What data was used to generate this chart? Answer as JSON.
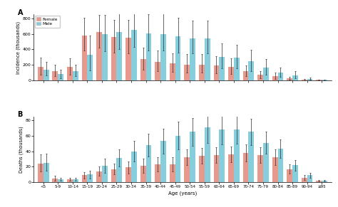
{
  "age_groups": [
    "<5",
    "5-9",
    "10-14",
    "15-19",
    "20-24",
    "25-29",
    "30-34",
    "35-39",
    "40-44",
    "45-49",
    "50-54",
    "55-59",
    "60-64",
    "65-69",
    "70-74",
    "75-79",
    "80-84",
    "85-89",
    "90-94",
    "≥95"
  ],
  "incidence_female": [
    170,
    120,
    175,
    580,
    620,
    560,
    550,
    270,
    240,
    215,
    205,
    205,
    190,
    175,
    115,
    70,
    55,
    22,
    10,
    5
  ],
  "incidence_male": [
    140,
    80,
    120,
    330,
    595,
    625,
    650,
    605,
    600,
    570,
    545,
    545,
    300,
    295,
    245,
    160,
    95,
    65,
    18,
    5
  ],
  "incidence_female_err_lo": [
    100,
    70,
    100,
    200,
    200,
    200,
    200,
    130,
    120,
    110,
    110,
    110,
    100,
    90,
    65,
    40,
    35,
    15,
    8,
    4
  ],
  "incidence_female_err_hi": [
    120,
    80,
    110,
    230,
    220,
    220,
    230,
    150,
    140,
    130,
    130,
    130,
    120,
    110,
    80,
    50,
    40,
    18,
    9,
    4
  ],
  "incidence_male_err_lo": [
    80,
    50,
    70,
    200,
    220,
    220,
    220,
    220,
    220,
    210,
    200,
    200,
    150,
    140,
    130,
    90,
    55,
    40,
    12,
    3
  ],
  "incidence_male_err_hi": [
    100,
    60,
    80,
    250,
    250,
    250,
    250,
    250,
    260,
    240,
    230,
    230,
    180,
    160,
    145,
    110,
    65,
    50,
    14,
    4
  ],
  "deaths_female": [
    24,
    5,
    4,
    9,
    14,
    17,
    19,
    21,
    23,
    23,
    32,
    34,
    35,
    36,
    38,
    35,
    32,
    17,
    6,
    2
  ],
  "deaths_male": [
    25,
    4,
    4,
    10,
    21,
    31,
    40,
    48,
    53,
    60,
    65,
    71,
    68,
    68,
    65,
    51,
    43,
    22,
    9,
    2
  ],
  "deaths_female_err_lo": [
    10,
    3,
    2,
    4,
    6,
    7,
    8,
    9,
    9,
    9,
    10,
    10,
    10,
    10,
    11,
    10,
    10,
    6,
    3,
    1
  ],
  "deaths_female_err_hi": [
    12,
    3,
    2,
    4,
    6,
    7,
    8,
    9,
    9,
    9,
    10,
    10,
    10,
    10,
    11,
    10,
    10,
    6,
    3,
    1
  ],
  "deaths_male_err_lo": [
    10,
    2,
    2,
    5,
    9,
    11,
    13,
    15,
    16,
    18,
    18,
    20,
    19,
    18,
    17,
    14,
    12,
    7,
    3,
    1
  ],
  "deaths_male_err_hi": [
    12,
    2,
    2,
    5,
    9,
    11,
    13,
    15,
    16,
    18,
    18,
    20,
    19,
    18,
    17,
    14,
    12,
    7,
    3,
    1
  ],
  "female_color": "#e8998d",
  "male_color": "#87cedc",
  "error_color": "#2a2a2a",
  "background_color": "#ffffff",
  "incidence_ylabel": "Incidence (thousands)",
  "deaths_ylabel": "Deaths (thousands)",
  "xlabel": "Age (years)",
  "incidence_ylim": [
    0,
    850
  ],
  "deaths_ylim": [
    0,
    85
  ],
  "incidence_yticks": [
    0,
    200,
    400,
    600,
    800
  ],
  "deaths_yticks": [
    0,
    20,
    40,
    60,
    80
  ],
  "label_A": "A",
  "label_B": "B",
  "legend_female": "Female",
  "legend_male": "Male"
}
